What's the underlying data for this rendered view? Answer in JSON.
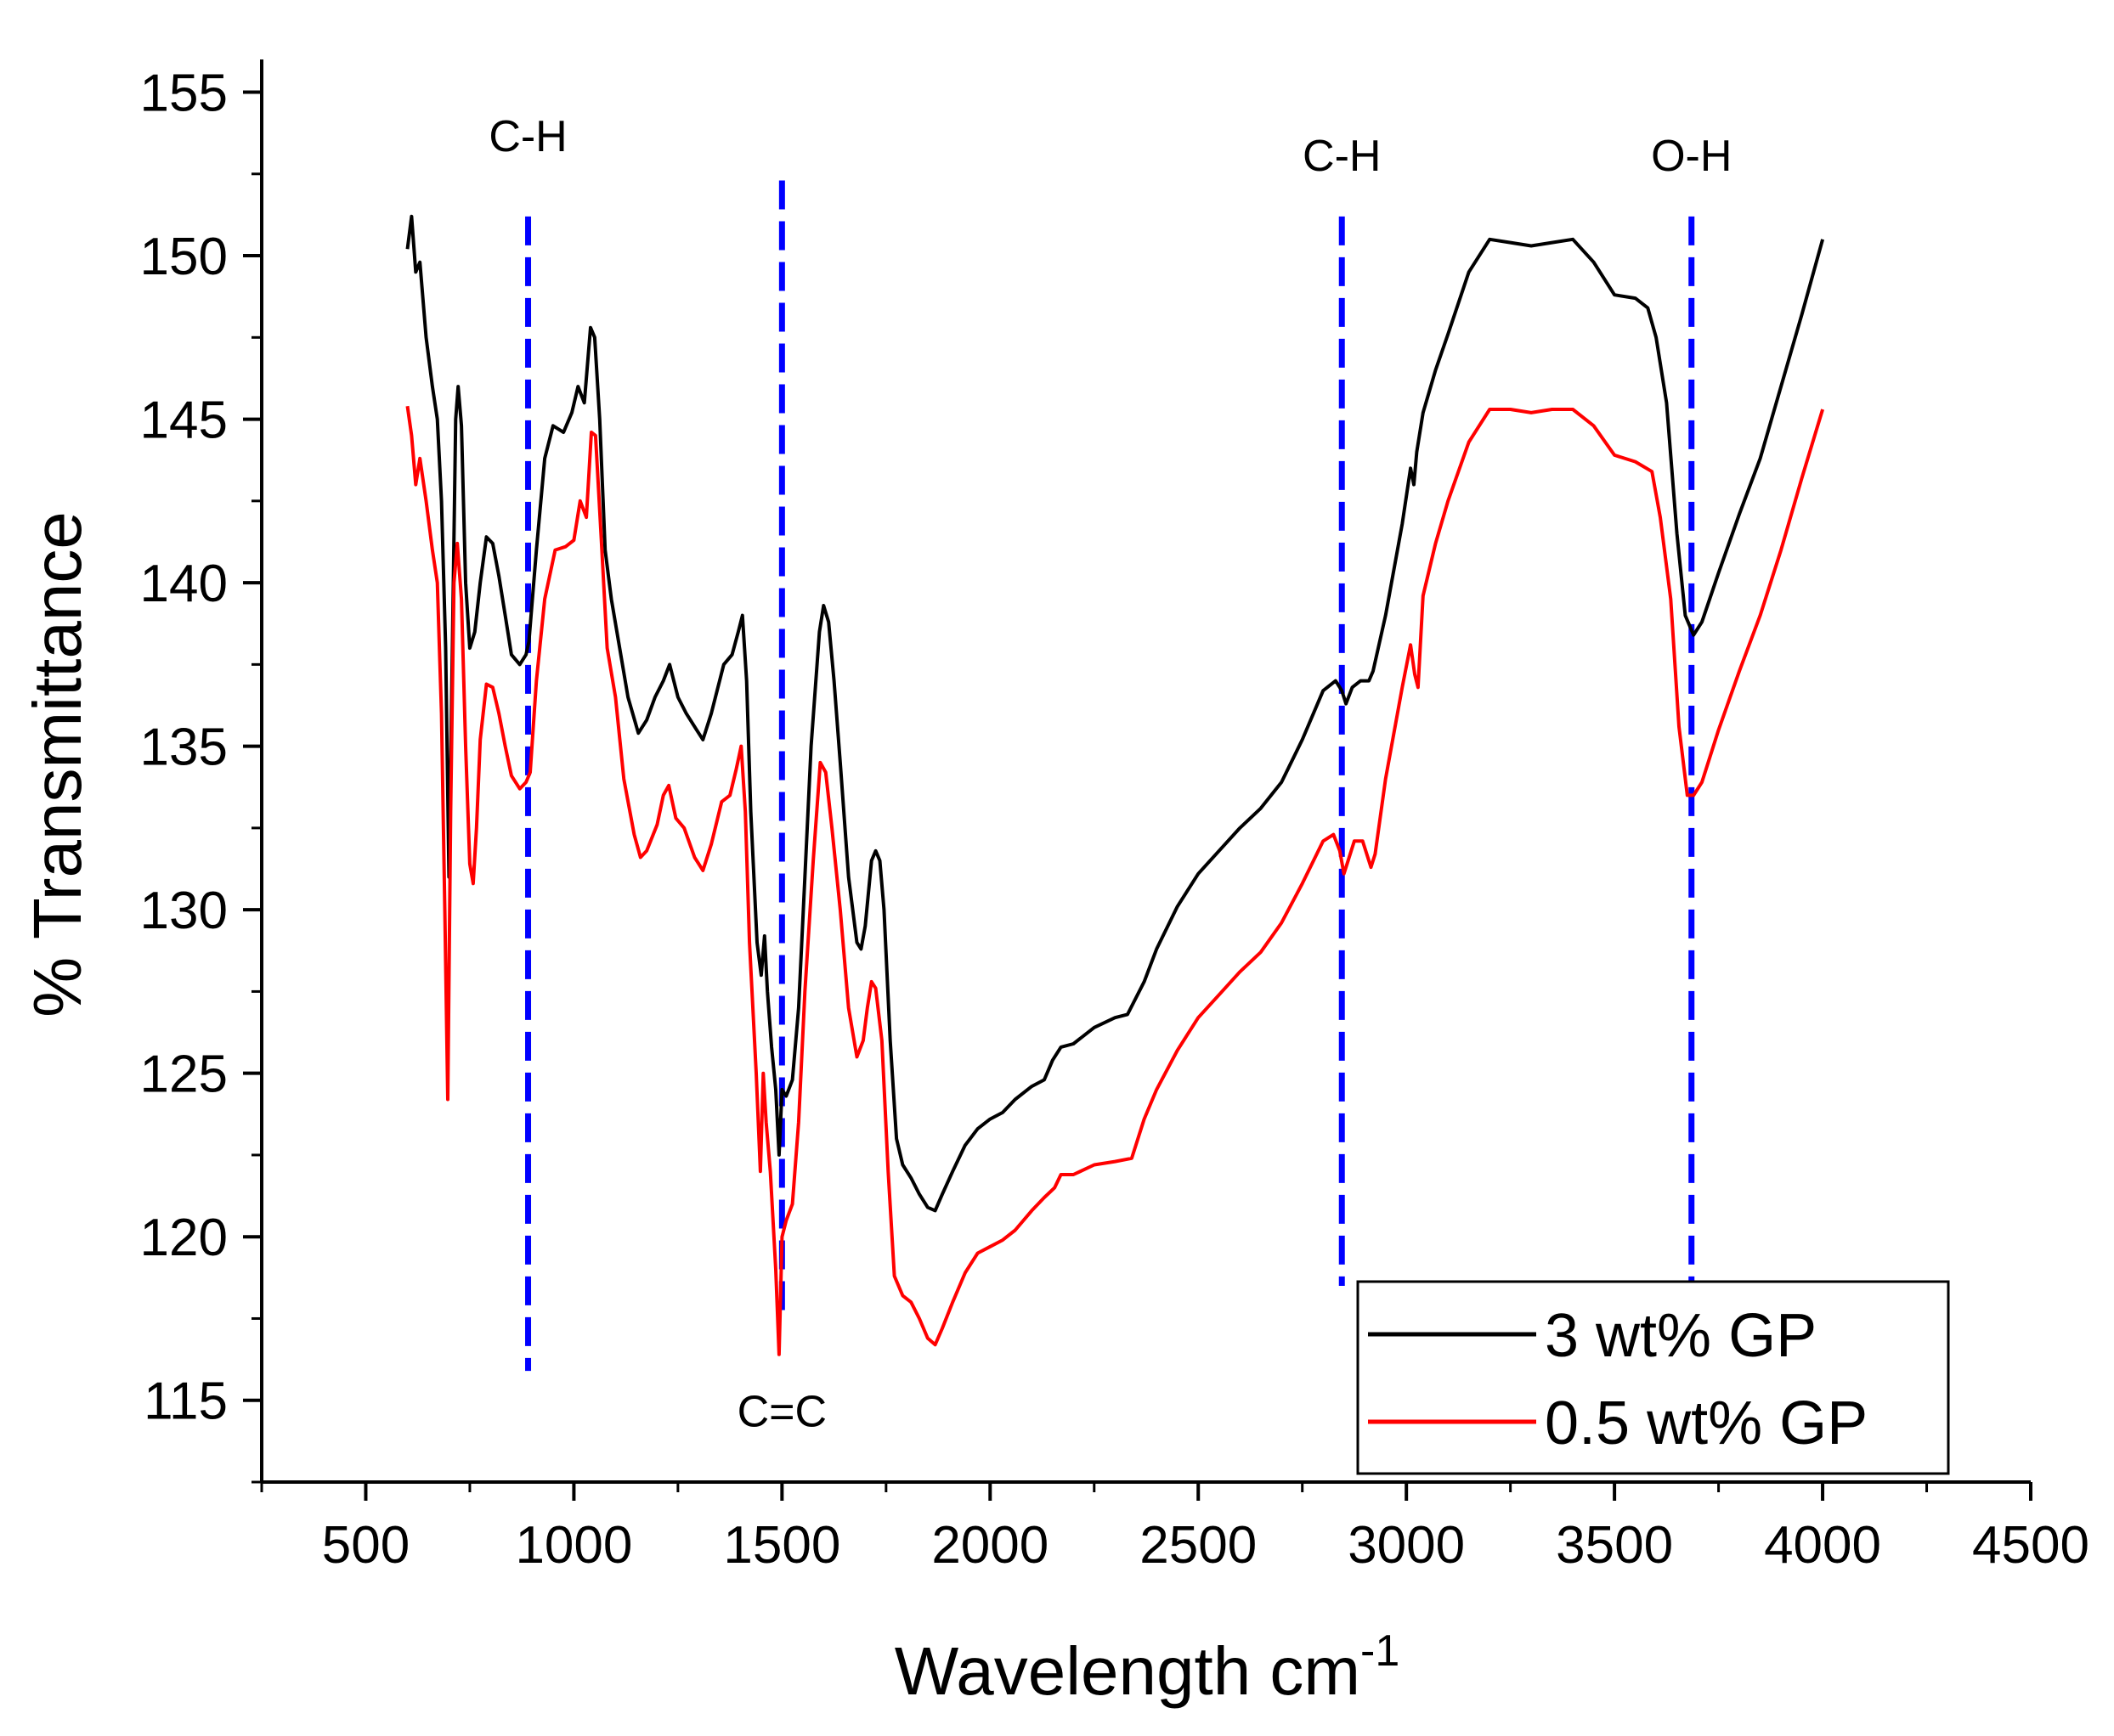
{
  "chart_data": {
    "type": "line",
    "title": "",
    "xlabel": "Wavelength cm",
    "xlabel_sup": "-1",
    "ylabel": "% Transmittance",
    "xlim": [
      250,
      4500
    ],
    "ylim": [
      112.5,
      156
    ],
    "x_ticks": [
      500,
      1000,
      1500,
      2000,
      2500,
      3000,
      3500,
      4000,
      4500
    ],
    "x_tick_labels": [
      "500",
      "1000",
      "1500",
      "2000",
      "2500",
      "3000",
      "3500",
      "4000",
      "4500"
    ],
    "y_ticks": [
      115,
      120,
      125,
      130,
      135,
      140,
      145,
      150,
      155
    ],
    "y_tick_labels": [
      "115",
      "120",
      "125",
      "130",
      "135",
      "140",
      "145",
      "150",
      "155"
    ],
    "legend_position": "bottom-right",
    "series": [
      {
        "name": "3 wt% GP",
        "color": "#000000",
        "points": [
          [
            600,
            150.2
          ],
          [
            610,
            151.2
          ],
          [
            620,
            149.5
          ],
          [
            630,
            149.8
          ],
          [
            645,
            147.5
          ],
          [
            660,
            146
          ],
          [
            672,
            145
          ],
          [
            682,
            142.5
          ],
          [
            692,
            138
          ],
          [
            700,
            131
          ],
          [
            708,
            138
          ],
          [
            716,
            145
          ],
          [
            722,
            146
          ],
          [
            730,
            144.8
          ],
          [
            740,
            140
          ],
          [
            750,
            138
          ],
          [
            762,
            138.5
          ],
          [
            775,
            140
          ],
          [
            790,
            141.4
          ],
          [
            805,
            141.2
          ],
          [
            820,
            140.2
          ],
          [
            835,
            139
          ],
          [
            850,
            137.8
          ],
          [
            870,
            137.5
          ],
          [
            885,
            137.8
          ],
          [
            892,
            138.2
          ],
          [
            910,
            141
          ],
          [
            930,
            143.8
          ],
          [
            950,
            144.8
          ],
          [
            975,
            144.6
          ],
          [
            995,
            145.2
          ],
          [
            1010,
            146
          ],
          [
            1025,
            145.5
          ],
          [
            1040,
            147.8
          ],
          [
            1050,
            147.5
          ],
          [
            1062,
            145
          ],
          [
            1075,
            141
          ],
          [
            1090,
            139.5
          ],
          [
            1110,
            138
          ],
          [
            1130,
            136.5
          ],
          [
            1155,
            135.4
          ],
          [
            1175,
            135.8
          ],
          [
            1195,
            136.5
          ],
          [
            1215,
            137
          ],
          [
            1230,
            137.5
          ],
          [
            1250,
            136.5
          ],
          [
            1270,
            136
          ],
          [
            1295,
            135.5
          ],
          [
            1310,
            135.2
          ],
          [
            1330,
            136
          ],
          [
            1360,
            137.5
          ],
          [
            1380,
            137.8
          ],
          [
            1395,
            138.5
          ],
          [
            1405,
            139
          ],
          [
            1415,
            137
          ],
          [
            1425,
            133
          ],
          [
            1440,
            129
          ],
          [
            1450,
            128
          ],
          [
            1458,
            129.2
          ],
          [
            1465,
            127.5
          ],
          [
            1475,
            125.8
          ],
          [
            1485,
            124.5
          ],
          [
            1493,
            122.5
          ],
          [
            1500,
            124.5
          ],
          [
            1510,
            124.3
          ],
          [
            1525,
            124.8
          ],
          [
            1540,
            127
          ],
          [
            1555,
            131
          ],
          [
            1570,
            135
          ],
          [
            1590,
            138.5
          ],
          [
            1600,
            139.3
          ],
          [
            1612,
            138.8
          ],
          [
            1625,
            137
          ],
          [
            1640,
            134.5
          ],
          [
            1660,
            131
          ],
          [
            1680,
            129
          ],
          [
            1690,
            128.8
          ],
          [
            1700,
            129.5
          ],
          [
            1715,
            131.5
          ],
          [
            1725,
            131.8
          ],
          [
            1735,
            131.5
          ],
          [
            1745,
            130
          ],
          [
            1760,
            126
          ],
          [
            1775,
            123
          ],
          [
            1790,
            122.2
          ],
          [
            1810,
            121.8
          ],
          [
            1830,
            121.3
          ],
          [
            1850,
            120.9
          ],
          [
            1868,
            120.8
          ],
          [
            1885,
            121.3
          ],
          [
            1910,
            122
          ],
          [
            1940,
            122.8
          ],
          [
            1970,
            123.3
          ],
          [
            2000,
            123.6
          ],
          [
            2030,
            123.8
          ],
          [
            2060,
            124.2
          ],
          [
            2100,
            124.6
          ],
          [
            2130,
            124.8
          ],
          [
            2150,
            125.4
          ],
          [
            2170,
            125.8
          ],
          [
            2200,
            125.9
          ],
          [
            2250,
            126.4
          ],
          [
            2300,
            126.7
          ],
          [
            2330,
            126.8
          ],
          [
            2370,
            127.8
          ],
          [
            2400,
            128.8
          ],
          [
            2450,
            130.1
          ],
          [
            2500,
            131.1
          ],
          [
            2550,
            131.8
          ],
          [
            2600,
            132.5
          ],
          [
            2650,
            133.1
          ],
          [
            2700,
            133.9
          ],
          [
            2750,
            135.2
          ],
          [
            2800,
            136.7
          ],
          [
            2830,
            137
          ],
          [
            2845,
            136.7
          ],
          [
            2855,
            136.3
          ],
          [
            2870,
            136.8
          ],
          [
            2890,
            137
          ],
          [
            2910,
            137
          ],
          [
            2920,
            137.3
          ],
          [
            2950,
            139
          ],
          [
            2990,
            141.8
          ],
          [
            3010,
            143.5
          ],
          [
            3018,
            143
          ],
          [
            3025,
            144
          ],
          [
            3040,
            145.2
          ],
          [
            3070,
            146.5
          ],
          [
            3100,
            147.6
          ],
          [
            3150,
            149.5
          ],
          [
            3200,
            150.5
          ],
          [
            3250,
            150.4
          ],
          [
            3300,
            150.3
          ],
          [
            3350,
            150.4
          ],
          [
            3400,
            150.5
          ],
          [
            3450,
            149.8
          ],
          [
            3500,
            148.8
          ],
          [
            3550,
            148.7
          ],
          [
            3580,
            148.4
          ],
          [
            3600,
            147.5
          ],
          [
            3625,
            145.5
          ],
          [
            3650,
            141.5
          ],
          [
            3670,
            139
          ],
          [
            3690,
            138.4
          ],
          [
            3710,
            138.8
          ],
          [
            3750,
            140.3
          ],
          [
            3800,
            142.1
          ],
          [
            3850,
            143.8
          ],
          [
            3900,
            146
          ],
          [
            3950,
            148.2
          ],
          [
            4000,
            150.5
          ]
        ]
      },
      {
        "name": "0.5 wt% GP",
        "color": "#ff0000",
        "points": [
          [
            600,
            145.4
          ],
          [
            610,
            144.5
          ],
          [
            620,
            143
          ],
          [
            630,
            143.8
          ],
          [
            645,
            142.5
          ],
          [
            660,
            141
          ],
          [
            672,
            140
          ],
          [
            682,
            136
          ],
          [
            690,
            130
          ],
          [
            697,
            124.2
          ],
          [
            704,
            133
          ],
          [
            712,
            140
          ],
          [
            720,
            141.2
          ],
          [
            730,
            139.5
          ],
          [
            740,
            135
          ],
          [
            750,
            131.4
          ],
          [
            758,
            130.8
          ],
          [
            766,
            132.5
          ],
          [
            775,
            135.2
          ],
          [
            790,
            136.9
          ],
          [
            805,
            136.8
          ],
          [
            820,
            136
          ],
          [
            835,
            135
          ],
          [
            850,
            134.1
          ],
          [
            870,
            133.7
          ],
          [
            885,
            133.9
          ],
          [
            895,
            134.2
          ],
          [
            910,
            137
          ],
          [
            930,
            139.5
          ],
          [
            955,
            141
          ],
          [
            980,
            141.1
          ],
          [
            1000,
            141.3
          ],
          [
            1015,
            142.5
          ],
          [
            1030,
            142
          ],
          [
            1042,
            144.6
          ],
          [
            1052,
            144.5
          ],
          [
            1065,
            141.5
          ],
          [
            1080,
            138
          ],
          [
            1100,
            136.5
          ],
          [
            1120,
            134
          ],
          [
            1145,
            132.3
          ],
          [
            1160,
            131.6
          ],
          [
            1175,
            131.8
          ],
          [
            1200,
            132.6
          ],
          [
            1215,
            133.5
          ],
          [
            1228,
            133.8
          ],
          [
            1245,
            132.8
          ],
          [
            1265,
            132.5
          ],
          [
            1290,
            131.6
          ],
          [
            1310,
            131.2
          ],
          [
            1330,
            132
          ],
          [
            1355,
            133.3
          ],
          [
            1375,
            133.5
          ],
          [
            1390,
            134.3
          ],
          [
            1402,
            135
          ],
          [
            1412,
            133
          ],
          [
            1422,
            129
          ],
          [
            1438,
            125
          ],
          [
            1448,
            122
          ],
          [
            1455,
            125
          ],
          [
            1462,
            123.5
          ],
          [
            1472,
            122
          ],
          [
            1485,
            119
          ],
          [
            1493,
            116.4
          ],
          [
            1500,
            120
          ],
          [
            1510,
            120.5
          ],
          [
            1525,
            121
          ],
          [
            1540,
            123.5
          ],
          [
            1555,
            127.5
          ],
          [
            1575,
            131.5
          ],
          [
            1592,
            134.5
          ],
          [
            1605,
            134.2
          ],
          [
            1620,
            132.5
          ],
          [
            1640,
            130
          ],
          [
            1660,
            127
          ],
          [
            1680,
            125.5
          ],
          [
            1695,
            126
          ],
          [
            1705,
            127
          ],
          [
            1715,
            127.8
          ],
          [
            1725,
            127.6
          ],
          [
            1740,
            126
          ],
          [
            1755,
            122
          ],
          [
            1770,
            118.8
          ],
          [
            1790,
            118.2
          ],
          [
            1810,
            118
          ],
          [
            1830,
            117.5
          ],
          [
            1850,
            116.9
          ],
          [
            1868,
            116.7
          ],
          [
            1885,
            117.2
          ],
          [
            1910,
            118
          ],
          [
            1940,
            118.9
          ],
          [
            1970,
            119.5
          ],
          [
            2000,
            119.7
          ],
          [
            2030,
            119.9
          ],
          [
            2060,
            120.2
          ],
          [
            2100,
            120.8
          ],
          [
            2130,
            121.2
          ],
          [
            2155,
            121.5
          ],
          [
            2170,
            121.9
          ],
          [
            2200,
            121.9
          ],
          [
            2250,
            122.2
          ],
          [
            2300,
            122.3
          ],
          [
            2340,
            122.4
          ],
          [
            2370,
            123.6
          ],
          [
            2400,
            124.5
          ],
          [
            2450,
            125.7
          ],
          [
            2500,
            126.7
          ],
          [
            2550,
            127.4
          ],
          [
            2600,
            128.1
          ],
          [
            2650,
            128.7
          ],
          [
            2700,
            129.6
          ],
          [
            2750,
            130.8
          ],
          [
            2800,
            132.1
          ],
          [
            2825,
            132.3
          ],
          [
            2840,
            131.8
          ],
          [
            2850,
            131.1
          ],
          [
            2860,
            131.5
          ],
          [
            2875,
            132.1
          ],
          [
            2895,
            132.1
          ],
          [
            2915,
            131.3
          ],
          [
            2925,
            131.7
          ],
          [
            2950,
            134
          ],
          [
            2990,
            136.8
          ],
          [
            3010,
            138.1
          ],
          [
            3020,
            137.2
          ],
          [
            3028,
            136.8
          ],
          [
            3040,
            139.6
          ],
          [
            3070,
            141.2
          ],
          [
            3100,
            142.5
          ],
          [
            3150,
            144.3
          ],
          [
            3200,
            145.3
          ],
          [
            3250,
            145.3
          ],
          [
            3300,
            145.2
          ],
          [
            3350,
            145.3
          ],
          [
            3400,
            145.3
          ],
          [
            3450,
            144.8
          ],
          [
            3500,
            143.9
          ],
          [
            3550,
            143.7
          ],
          [
            3590,
            143.4
          ],
          [
            3610,
            142
          ],
          [
            3635,
            139.5
          ],
          [
            3655,
            135.6
          ],
          [
            3675,
            133.5
          ],
          [
            3690,
            133.5
          ],
          [
            3710,
            133.9
          ],
          [
            3750,
            135.5
          ],
          [
            3800,
            137.3
          ],
          [
            3850,
            139
          ],
          [
            3900,
            141
          ],
          [
            3950,
            143.2
          ],
          [
            4000,
            145.3
          ]
        ]
      }
    ],
    "annotations": [
      {
        "label": "C-H",
        "x": 890,
        "line_top": 151.2,
        "line_bottom": 115.9,
        "label_y": 153.2
      },
      {
        "label": "C=C",
        "x": 1500,
        "line_top": 152.3,
        "line_bottom": 117.5,
        "label_y": 114.2
      },
      {
        "label": "C-H",
        "x": 2845,
        "line_top": 151.2,
        "line_bottom": 118.5,
        "label_y": 152.6
      },
      {
        "label": "O-H",
        "x": 3685,
        "line_top": 151.2,
        "line_bottom": 118.5,
        "label_y": 152.6
      }
    ],
    "annotation_color": "#0000ff"
  }
}
